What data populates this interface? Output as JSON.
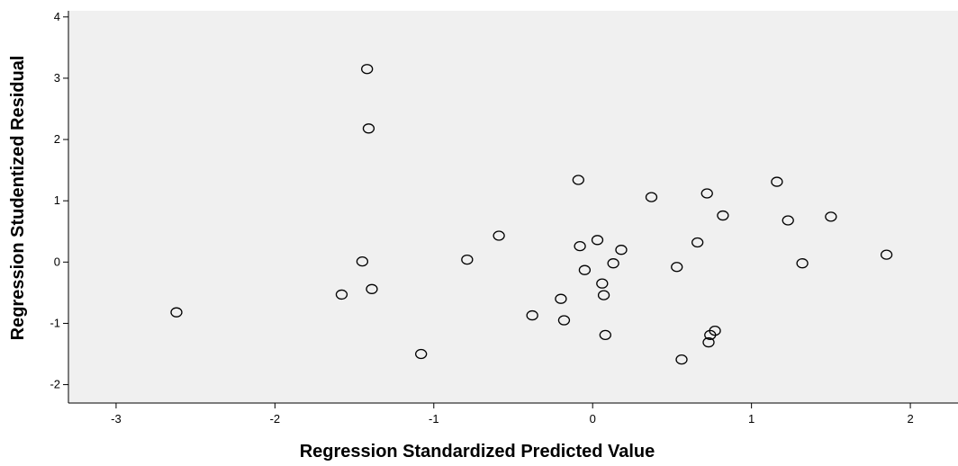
{
  "chart_data": {
    "type": "scatter",
    "xlabel": "Regression Standardized Predicted Value",
    "ylabel": "Regression Studentized Residual",
    "xlim": [
      -3.3,
      2.3
    ],
    "ylim": [
      -2.3,
      4.1
    ],
    "xticks": [
      -3,
      -2,
      -1,
      0,
      1,
      2
    ],
    "yticks": [
      -2,
      -1,
      0,
      1,
      2,
      3,
      4
    ],
    "xtick_labels": [
      "-3",
      "-2",
      "-1",
      "0",
      "1",
      "2"
    ],
    "ytick_labels": [
      "-2",
      "-1",
      "0",
      "1",
      "2",
      "3",
      "4"
    ],
    "grid": false,
    "plot_background": "#f0f0f0",
    "marker_color": "#000000",
    "points": [
      {
        "x": -2.62,
        "y": -0.82
      },
      {
        "x": -1.58,
        "y": -0.53
      },
      {
        "x": -1.45,
        "y": 0.01
      },
      {
        "x": -1.42,
        "y": 3.15
      },
      {
        "x": -1.41,
        "y": 2.18
      },
      {
        "x": -1.39,
        "y": -0.44
      },
      {
        "x": -1.08,
        "y": -1.5
      },
      {
        "x": -0.79,
        "y": 0.04
      },
      {
        "x": -0.59,
        "y": 0.43
      },
      {
        "x": -0.38,
        "y": -0.87
      },
      {
        "x": -0.2,
        "y": -0.6
      },
      {
        "x": -0.18,
        "y": -0.95
      },
      {
        "x": -0.09,
        "y": 1.34
      },
      {
        "x": -0.08,
        "y": 0.26
      },
      {
        "x": -0.05,
        "y": -0.13
      },
      {
        "x": 0.03,
        "y": 0.36
      },
      {
        "x": 0.06,
        "y": -0.35
      },
      {
        "x": 0.07,
        "y": -0.54
      },
      {
        "x": 0.08,
        "y": -1.19
      },
      {
        "x": 0.13,
        "y": -0.02
      },
      {
        "x": 0.18,
        "y": 0.2
      },
      {
        "x": 0.37,
        "y": 1.06
      },
      {
        "x": 0.53,
        "y": -0.08
      },
      {
        "x": 0.56,
        "y": -1.59
      },
      {
        "x": 0.66,
        "y": 0.32
      },
      {
        "x": 0.72,
        "y": 1.12
      },
      {
        "x": 0.73,
        "y": -1.31
      },
      {
        "x": 0.74,
        "y": -1.19
      },
      {
        "x": 0.77,
        "y": -1.12
      },
      {
        "x": 0.82,
        "y": 0.76
      },
      {
        "x": 1.16,
        "y": 1.31
      },
      {
        "x": 1.23,
        "y": 0.68
      },
      {
        "x": 1.32,
        "y": -0.02
      },
      {
        "x": 1.5,
        "y": 0.74
      },
      {
        "x": 1.85,
        "y": 0.12
      }
    ]
  }
}
